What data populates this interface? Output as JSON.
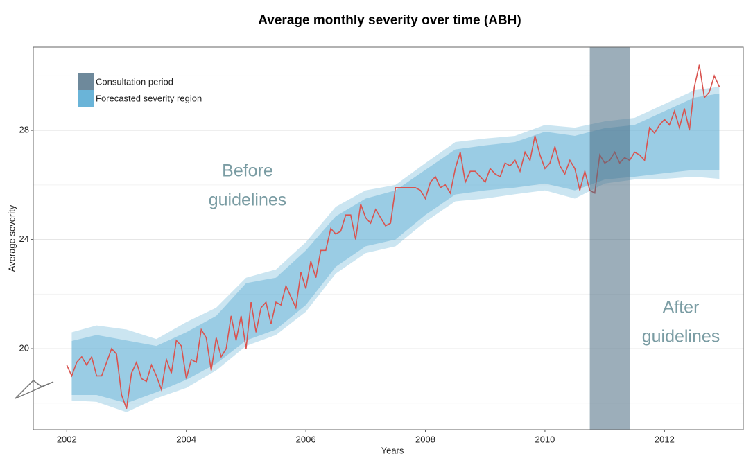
{
  "chart_data": {
    "type": "line",
    "title": "Average monthly severity over time (ABH)",
    "xlabel": "Years",
    "ylabel": "Average severity",
    "xlim": [
      2001.44,
      2013.33
    ],
    "ylim": [
      17.03,
      31.05
    ],
    "xticks": [
      2002,
      2004,
      2006,
      2008,
      2010,
      2012
    ],
    "yticks": [
      20,
      24,
      28
    ],
    "minor_yticks": [
      18,
      22,
      26,
      30
    ],
    "grid": true,
    "x": [
      2002.0,
      2002.083,
      2002.167,
      2002.25,
      2002.333,
      2002.417,
      2002.5,
      2002.583,
      2002.667,
      2002.75,
      2002.833,
      2002.917,
      2003.0,
      2003.083,
      2003.167,
      2003.25,
      2003.333,
      2003.417,
      2003.5,
      2003.583,
      2003.667,
      2003.75,
      2003.833,
      2003.917,
      2004.0,
      2004.083,
      2004.167,
      2004.25,
      2004.333,
      2004.417,
      2004.5,
      2004.583,
      2004.667,
      2004.75,
      2004.833,
      2004.917,
      2005.0,
      2005.083,
      2005.167,
      2005.25,
      2005.333,
      2005.417,
      2005.5,
      2005.583,
      2005.667,
      2005.75,
      2005.833,
      2005.917,
      2006.0,
      2006.083,
      2006.167,
      2006.25,
      2006.333,
      2006.417,
      2006.5,
      2006.583,
      2006.667,
      2006.75,
      2006.833,
      2006.917,
      2007.0,
      2007.083,
      2007.167,
      2007.25,
      2007.333,
      2007.417,
      2007.5,
      2007.583,
      2007.667,
      2007.75,
      2007.833,
      2007.917,
      2008.0,
      2008.083,
      2008.167,
      2008.25,
      2008.333,
      2008.417,
      2008.5,
      2008.583,
      2008.667,
      2008.75,
      2008.833,
      2008.917,
      2009.0,
      2009.083,
      2009.167,
      2009.25,
      2009.333,
      2009.417,
      2009.5,
      2009.583,
      2009.667,
      2009.75,
      2009.833,
      2009.917,
      2010.0,
      2010.083,
      2010.167,
      2010.25,
      2010.333,
      2010.417,
      2010.5,
      2010.583,
      2010.667,
      2010.75,
      2010.833,
      2010.917,
      2011.0,
      2011.083,
      2011.167,
      2011.25,
      2011.333,
      2011.417,
      2011.5,
      2011.583,
      2011.667,
      2011.75,
      2011.833,
      2011.917,
      2012.0,
      2012.083,
      2012.167,
      2012.25,
      2012.333,
      2012.417,
      2012.5,
      2012.583,
      2012.667,
      2012.75,
      2012.833,
      2012.917
    ],
    "series": [
      {
        "color": "#d9534f",
        "values": [
          19.4,
          19.0,
          19.5,
          19.7,
          19.4,
          19.7,
          19.0,
          19.0,
          19.5,
          20.0,
          19.8,
          18.3,
          17.8,
          19.1,
          19.5,
          18.9,
          18.8,
          19.4,
          19.0,
          18.5,
          19.6,
          19.1,
          20.3,
          20.1,
          18.9,
          19.6,
          19.5,
          20.7,
          20.4,
          19.2,
          20.4,
          19.7,
          20.0,
          21.2,
          20.3,
          21.2,
          20.0,
          21.7,
          20.6,
          21.5,
          21.7,
          20.9,
          21.7,
          21.6,
          22.3,
          21.9,
          21.5,
          22.8,
          22.2,
          23.2,
          22.6,
          23.6,
          23.6,
          24.4,
          24.2,
          24.3,
          24.9,
          24.9,
          24.0,
          25.3,
          24.8,
          24.6,
          25.1,
          24.8,
          24.5,
          24.6,
          25.9,
          25.9,
          25.9,
          25.9,
          25.9,
          25.8,
          25.5,
          26.1,
          26.3,
          25.9,
          26.0,
          25.7,
          26.6,
          27.2,
          26.1,
          26.5,
          26.5,
          26.3,
          26.1,
          26.6,
          26.4,
          26.3,
          26.8,
          26.7,
          26.9,
          26.5,
          27.2,
          26.9,
          27.8,
          27.1,
          26.6,
          26.8,
          27.4,
          26.7,
          26.4,
          26.9,
          26.6,
          25.8,
          26.5,
          25.8,
          25.7,
          27.1,
          26.8,
          26.9,
          27.2,
          26.8,
          27.0,
          26.9,
          27.2,
          27.1,
          26.9,
          28.1,
          27.9,
          28.2,
          28.4,
          28.2,
          28.7,
          28.1,
          28.8,
          28.0,
          29.6,
          30.4,
          29.2,
          29.4,
          30.0,
          29.6
        ]
      }
    ],
    "bands": [
      {
        "name": "Forecasted severity region",
        "color": "#6ab4d8",
        "x": [
          2002.083,
          2002.5,
          2003.0,
          2003.5,
          2004.0,
          2004.5,
          2005.0,
          2005.5,
          2006.0,
          2006.5,
          2007.0,
          2007.5,
          2008.0,
          2008.5,
          2009.0,
          2009.5,
          2010.0,
          2010.5,
          2011.0,
          2011.5,
          2012.0,
          2012.5,
          2012.917
        ],
        "outer_upper": [
          20.6,
          20.85,
          20.7,
          20.35,
          20.97,
          21.5,
          22.6,
          22.9,
          23.9,
          25.2,
          25.8,
          26.0,
          26.8,
          27.57,
          27.7,
          27.8,
          28.2,
          28.1,
          28.33,
          28.46,
          28.96,
          29.47,
          29.6
        ],
        "outer_lower": [
          18.1,
          18.05,
          17.67,
          18.18,
          18.56,
          19.2,
          20.1,
          20.5,
          21.35,
          22.75,
          23.5,
          23.75,
          24.65,
          25.4,
          25.5,
          25.66,
          25.8,
          25.5,
          26.05,
          26.2,
          26.22,
          26.3,
          26.22
        ],
        "inner_upper": [
          20.28,
          20.5,
          20.3,
          20.1,
          20.6,
          21.2,
          22.4,
          22.6,
          23.6,
          24.85,
          25.5,
          25.8,
          26.55,
          27.3,
          27.45,
          27.57,
          27.95,
          27.8,
          28.08,
          28.2,
          28.7,
          29.2,
          29.35
        ],
        "inner_lower": [
          18.3,
          18.3,
          18.0,
          18.4,
          18.86,
          19.45,
          20.3,
          20.7,
          21.6,
          23.0,
          23.75,
          24.0,
          24.9,
          25.65,
          25.8,
          25.9,
          26.05,
          25.8,
          26.2,
          26.3,
          26.43,
          26.55,
          26.55
        ]
      }
    ],
    "spans": [
      {
        "name": "Consultation period",
        "color": "#4a6b82",
        "start": 2010.75,
        "end": 2011.42
      }
    ],
    "annotations": [
      [
        "Before",
        "guidelines"
      ],
      [
        "After",
        "guidelines"
      ]
    ]
  }
}
